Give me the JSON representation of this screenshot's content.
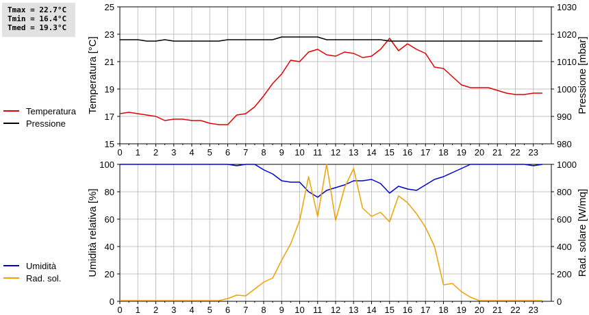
{
  "stats": {
    "tmax": "Tmax = 22.7°C",
    "tmin": "Tmin = 16.4°C",
    "tmed": "Tmed = 19.3°C"
  },
  "colors": {
    "temperature": "#e00000",
    "pressure": "#000000",
    "humidity": "#0000cc",
    "radiation": "#f0a000",
    "grid": "#c0c0c0"
  },
  "chart_data": [
    {
      "type": "line",
      "x": [
        0,
        0.5,
        1,
        1.5,
        2,
        2.5,
        3,
        3.5,
        4,
        4.5,
        5,
        5.5,
        6,
        6.5,
        7,
        7.5,
        8,
        8.5,
        9,
        9.5,
        10,
        10.5,
        11,
        11.5,
        12,
        12.5,
        13,
        13.5,
        14,
        14.5,
        15,
        15.5,
        16,
        16.5,
        17,
        17.5,
        18,
        18.5,
        19,
        19.5,
        20,
        20.5,
        21,
        21.5,
        22,
        22.5,
        23,
        23.5
      ],
      "xlim": [
        0,
        24
      ],
      "xticks": [
        "0",
        "1",
        "2",
        "3",
        "4",
        "5",
        "6",
        "7",
        "8",
        "9",
        "10",
        "11",
        "12",
        "13",
        "14",
        "15",
        "16",
        "17",
        "18",
        "19",
        "20",
        "21",
        "22",
        "23"
      ],
      "y_left": {
        "label": "Temperatura [°C]",
        "lim": [
          15,
          25
        ],
        "ticks": [
          "15",
          "17",
          "19",
          "21",
          "23",
          "25"
        ]
      },
      "y_right": {
        "label": "Pressione [mbar]",
        "lim": [
          980,
          1030
        ],
        "ticks": [
          "980",
          "990",
          "1000",
          "1010",
          "1020",
          "1030"
        ]
      },
      "grid": true,
      "legend_placement": "left",
      "series": [
        {
          "name": "Temperatura",
          "axis": "left",
          "values": [
            17.2,
            17.3,
            17.2,
            17.1,
            17.0,
            16.7,
            16.8,
            16.8,
            16.7,
            16.7,
            16.5,
            16.4,
            16.4,
            17.1,
            17.2,
            17.7,
            18.5,
            19.4,
            20.1,
            21.1,
            21.0,
            21.7,
            21.9,
            21.5,
            21.4,
            21.7,
            21.6,
            21.3,
            21.4,
            21.9,
            22.7,
            21.8,
            22.3,
            21.9,
            21.6,
            20.6,
            20.5,
            19.9,
            19.3,
            19.1,
            19.1,
            19.1,
            18.9,
            18.7,
            18.6,
            18.6,
            18.7,
            18.7
          ]
        },
        {
          "name": "Pressione",
          "axis": "right",
          "values": [
            1018,
            1018,
            1018,
            1017.5,
            1017.5,
            1018,
            1017.5,
            1017.5,
            1017.5,
            1017.5,
            1017.5,
            1017.5,
            1018,
            1018,
            1018,
            1018,
            1018,
            1018,
            1019,
            1019,
            1019,
            1019,
            1019,
            1018,
            1018,
            1018,
            1018,
            1018,
            1018,
            1018,
            1017.5,
            1017.5,
            1017.5,
            1017.5,
            1017.5,
            1017.5,
            1017.5,
            1017.5,
            1017.5,
            1017.5,
            1017.5,
            1017.5,
            1017.5,
            1017.5,
            1017.5,
            1017.5,
            1017.5,
            1017.5
          ]
        }
      ]
    },
    {
      "type": "line",
      "x": [
        0,
        0.5,
        1,
        1.5,
        2,
        2.5,
        3,
        3.5,
        4,
        4.5,
        5,
        5.5,
        6,
        6.5,
        7,
        7.5,
        8,
        8.5,
        9,
        9.5,
        10,
        10.5,
        11,
        11.5,
        12,
        12.5,
        13,
        13.5,
        14,
        14.5,
        15,
        15.5,
        16,
        16.5,
        17,
        17.5,
        18,
        18.5,
        19,
        19.5,
        20,
        20.5,
        21,
        21.5,
        22,
        22.5,
        23,
        23.5
      ],
      "xlim": [
        0,
        24
      ],
      "xticks": [
        "0",
        "1",
        "2",
        "3",
        "4",
        "5",
        "6",
        "7",
        "8",
        "9",
        "10",
        "11",
        "12",
        "13",
        "14",
        "15",
        "16",
        "17",
        "18",
        "19",
        "20",
        "21",
        "22",
        "23"
      ],
      "y_left": {
        "label": "Umidità relativa [%]",
        "lim": [
          0,
          100
        ],
        "ticks": [
          "0",
          "20",
          "40",
          "60",
          "80",
          "100"
        ]
      },
      "y_right": {
        "label": "Rad. solare [W/mq]",
        "lim": [
          0,
          1000
        ],
        "ticks": [
          "0",
          "200",
          "400",
          "600",
          "800",
          "1000"
        ]
      },
      "grid": true,
      "legend_placement": "left",
      "series": [
        {
          "name": "Umidità",
          "axis": "left",
          "values": [
            100,
            100,
            100,
            100,
            100,
            100,
            100,
            100,
            100,
            100,
            100,
            100,
            100,
            99,
            100,
            100,
            96,
            93,
            88,
            87,
            87,
            80,
            76,
            81,
            83,
            85,
            88,
            88,
            89,
            86,
            79,
            84,
            82,
            81,
            85,
            89,
            91,
            94,
            97,
            100,
            100,
            100,
            100,
            100,
            100,
            100,
            99,
            100
          ]
        },
        {
          "name": "Rad. sol.",
          "axis": "right",
          "values": [
            5,
            5,
            5,
            5,
            5,
            5,
            5,
            5,
            5,
            5,
            5,
            5,
            20,
            45,
            40,
            90,
            140,
            170,
            300,
            420,
            590,
            910,
            620,
            1000,
            590,
            830,
            970,
            680,
            620,
            650,
            580,
            770,
            720,
            640,
            540,
            400,
            120,
            130,
            70,
            30,
            5,
            5,
            5,
            5,
            5,
            5,
            5,
            5
          ]
        }
      ]
    }
  ]
}
